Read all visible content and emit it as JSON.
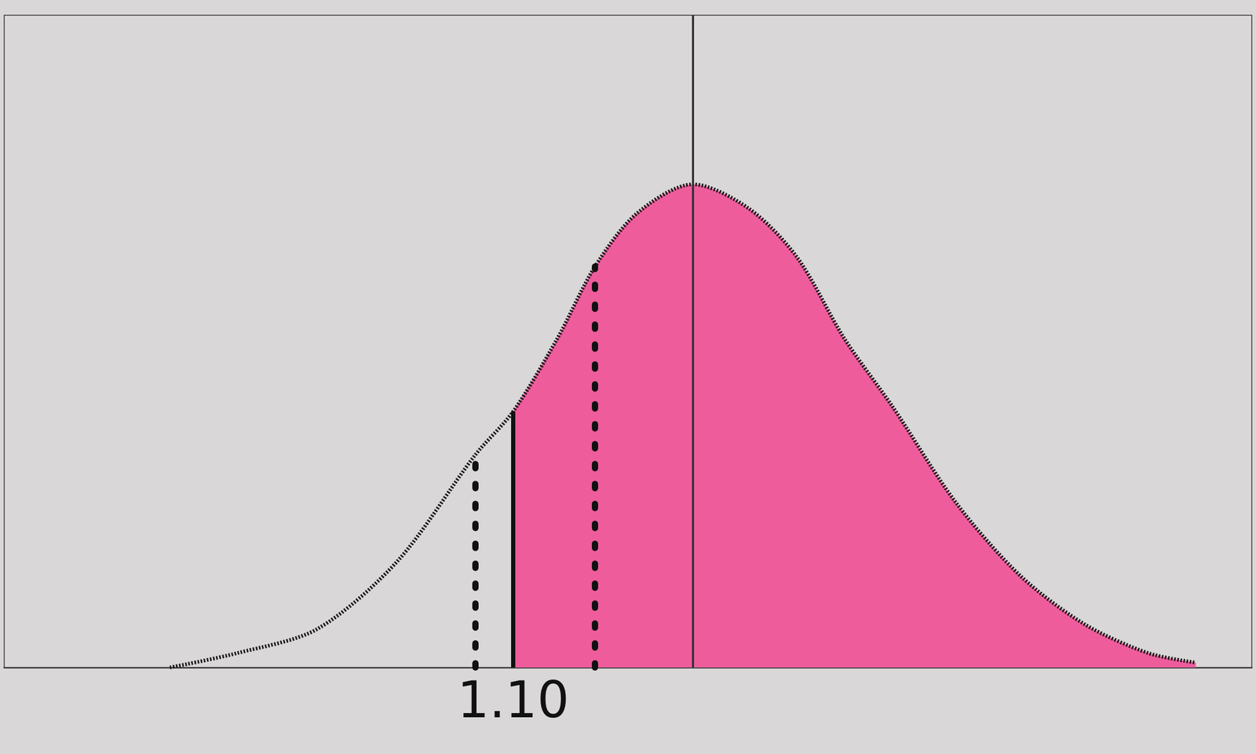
{
  "chart_data": {
    "type": "area",
    "x": [
      -0.62,
      -0.28,
      0.12,
      0.52,
      0.91,
      1.1,
      1.32,
      1.51,
      1.72,
      2.0,
      2.28,
      2.52,
      2.76,
      3.0,
      3.32,
      3.64,
      3.96,
      4.28,
      4.52
    ],
    "values": [
      0,
      0.03,
      0.08,
      0.22,
      0.44,
      0.53,
      0.68,
      0.83,
      0.94,
      1.0,
      0.95,
      0.85,
      0.68,
      0.54,
      0.34,
      0.19,
      0.09,
      0.03,
      0.01
    ],
    "color": "#ee5c9c",
    "line_style": "dotted",
    "shade_from": 1.1,
    "mean": 2.0,
    "dotted_lines": [
      0.91,
      1.51
    ],
    "xlim": [
      -1.45,
      4.8
    ],
    "ylim": [
      0,
      1.35
    ],
    "xticks": [
      {
        "value": 1.1,
        "label": "1.10"
      }
    ],
    "tick_labels": "x",
    "grid": false
  }
}
